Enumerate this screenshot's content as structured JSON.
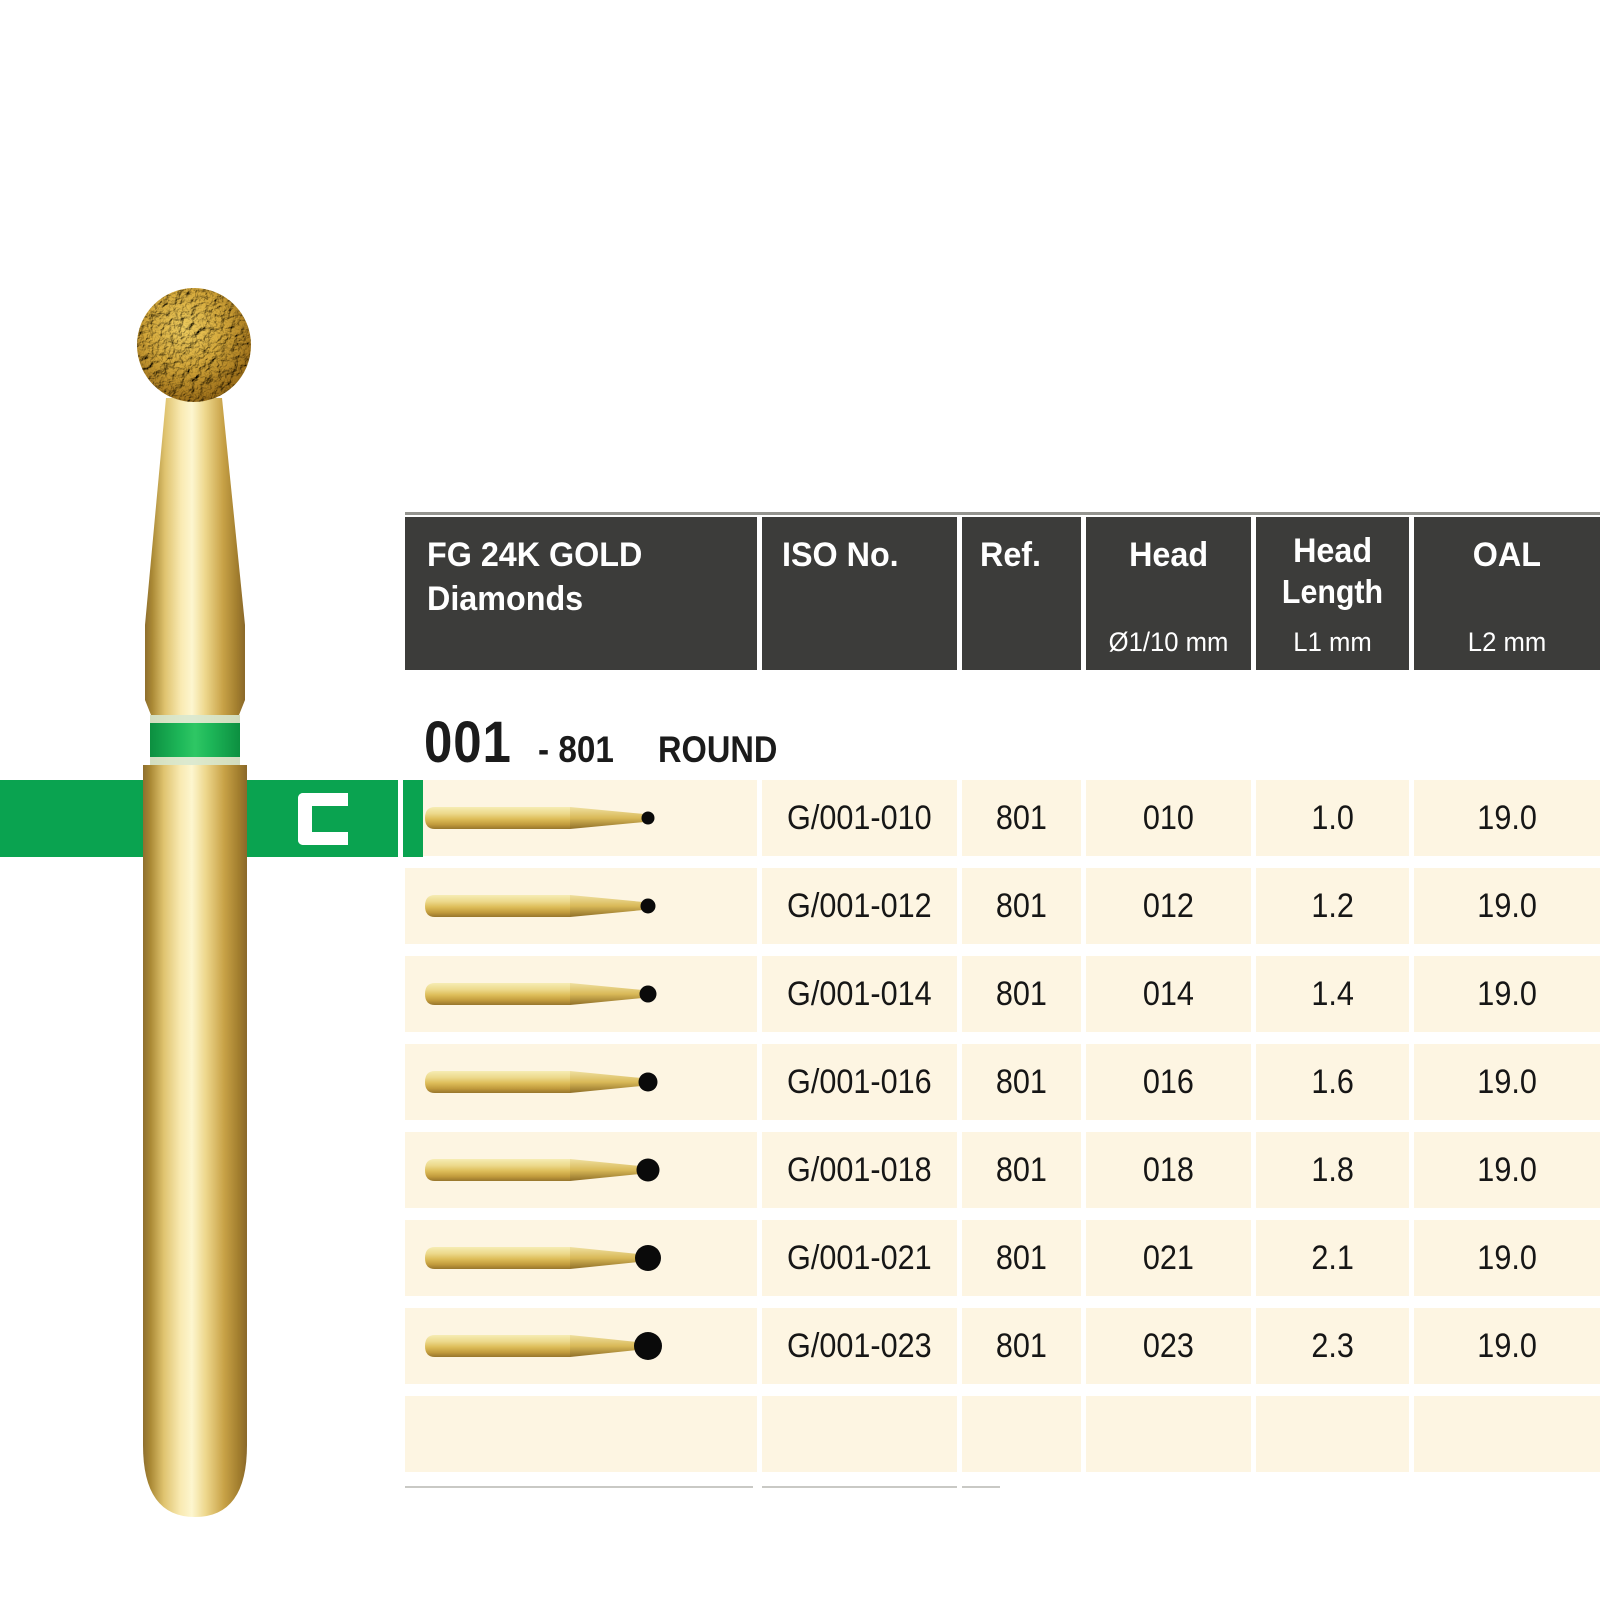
{
  "banner": {
    "letter": "C",
    "green": "#0aa350"
  },
  "bur_photo": {
    "icon": "round-diamond-bur-photo",
    "ring_color": "#1fae52",
    "gold_light": "#fdf6cf",
    "gold_dark": "#8a682a"
  },
  "table": {
    "title": {
      "line1": "FG 24K GOLD",
      "line2": "Diamonds"
    },
    "columns": {
      "iso": {
        "label": "ISO No."
      },
      "ref": {
        "label": "Ref."
      },
      "head": {
        "label": "Head",
        "unit": "Ø1/10 mm"
      },
      "head_length": {
        "label": "Head",
        "label2": "Length",
        "unit": "L1 mm"
      },
      "oal": {
        "label": "OAL",
        "unit": "L2 mm"
      }
    },
    "section": {
      "code": "001",
      "iso_ref": "- 801",
      "shape": "ROUND"
    },
    "rows": [
      {
        "iso": "G/001-010",
        "ref": "801",
        "head": "010",
        "head_length": "1.0",
        "oal": "19.0",
        "ball_r": 6.5
      },
      {
        "iso": "G/001-012",
        "ref": "801",
        "head": "012",
        "head_length": "1.2",
        "oal": "19.0",
        "ball_r": 7.5
      },
      {
        "iso": "G/001-014",
        "ref": "801",
        "head": "014",
        "head_length": "1.4",
        "oal": "19.0",
        "ball_r": 8.5
      },
      {
        "iso": "G/001-016",
        "ref": "801",
        "head": "016",
        "head_length": "1.6",
        "oal": "19.0",
        "ball_r": 9.5
      },
      {
        "iso": "G/001-018",
        "ref": "801",
        "head": "018",
        "head_length": "1.8",
        "oal": "19.0",
        "ball_r": 11.5
      },
      {
        "iso": "G/001-021",
        "ref": "801",
        "head": "021",
        "head_length": "2.1",
        "oal": "19.0",
        "ball_r": 13
      },
      {
        "iso": "G/001-023",
        "ref": "801",
        "head": "023",
        "head_length": "2.3",
        "oal": "19.0",
        "ball_r": 14
      },
      {
        "iso": "",
        "ref": "",
        "head": "",
        "head_length": "",
        "oal": "",
        "ball_r": 0
      }
    ],
    "colors": {
      "header_bg": "#3c3c3a",
      "row_bg": "#fdf5e2",
      "text": "#161616"
    }
  }
}
